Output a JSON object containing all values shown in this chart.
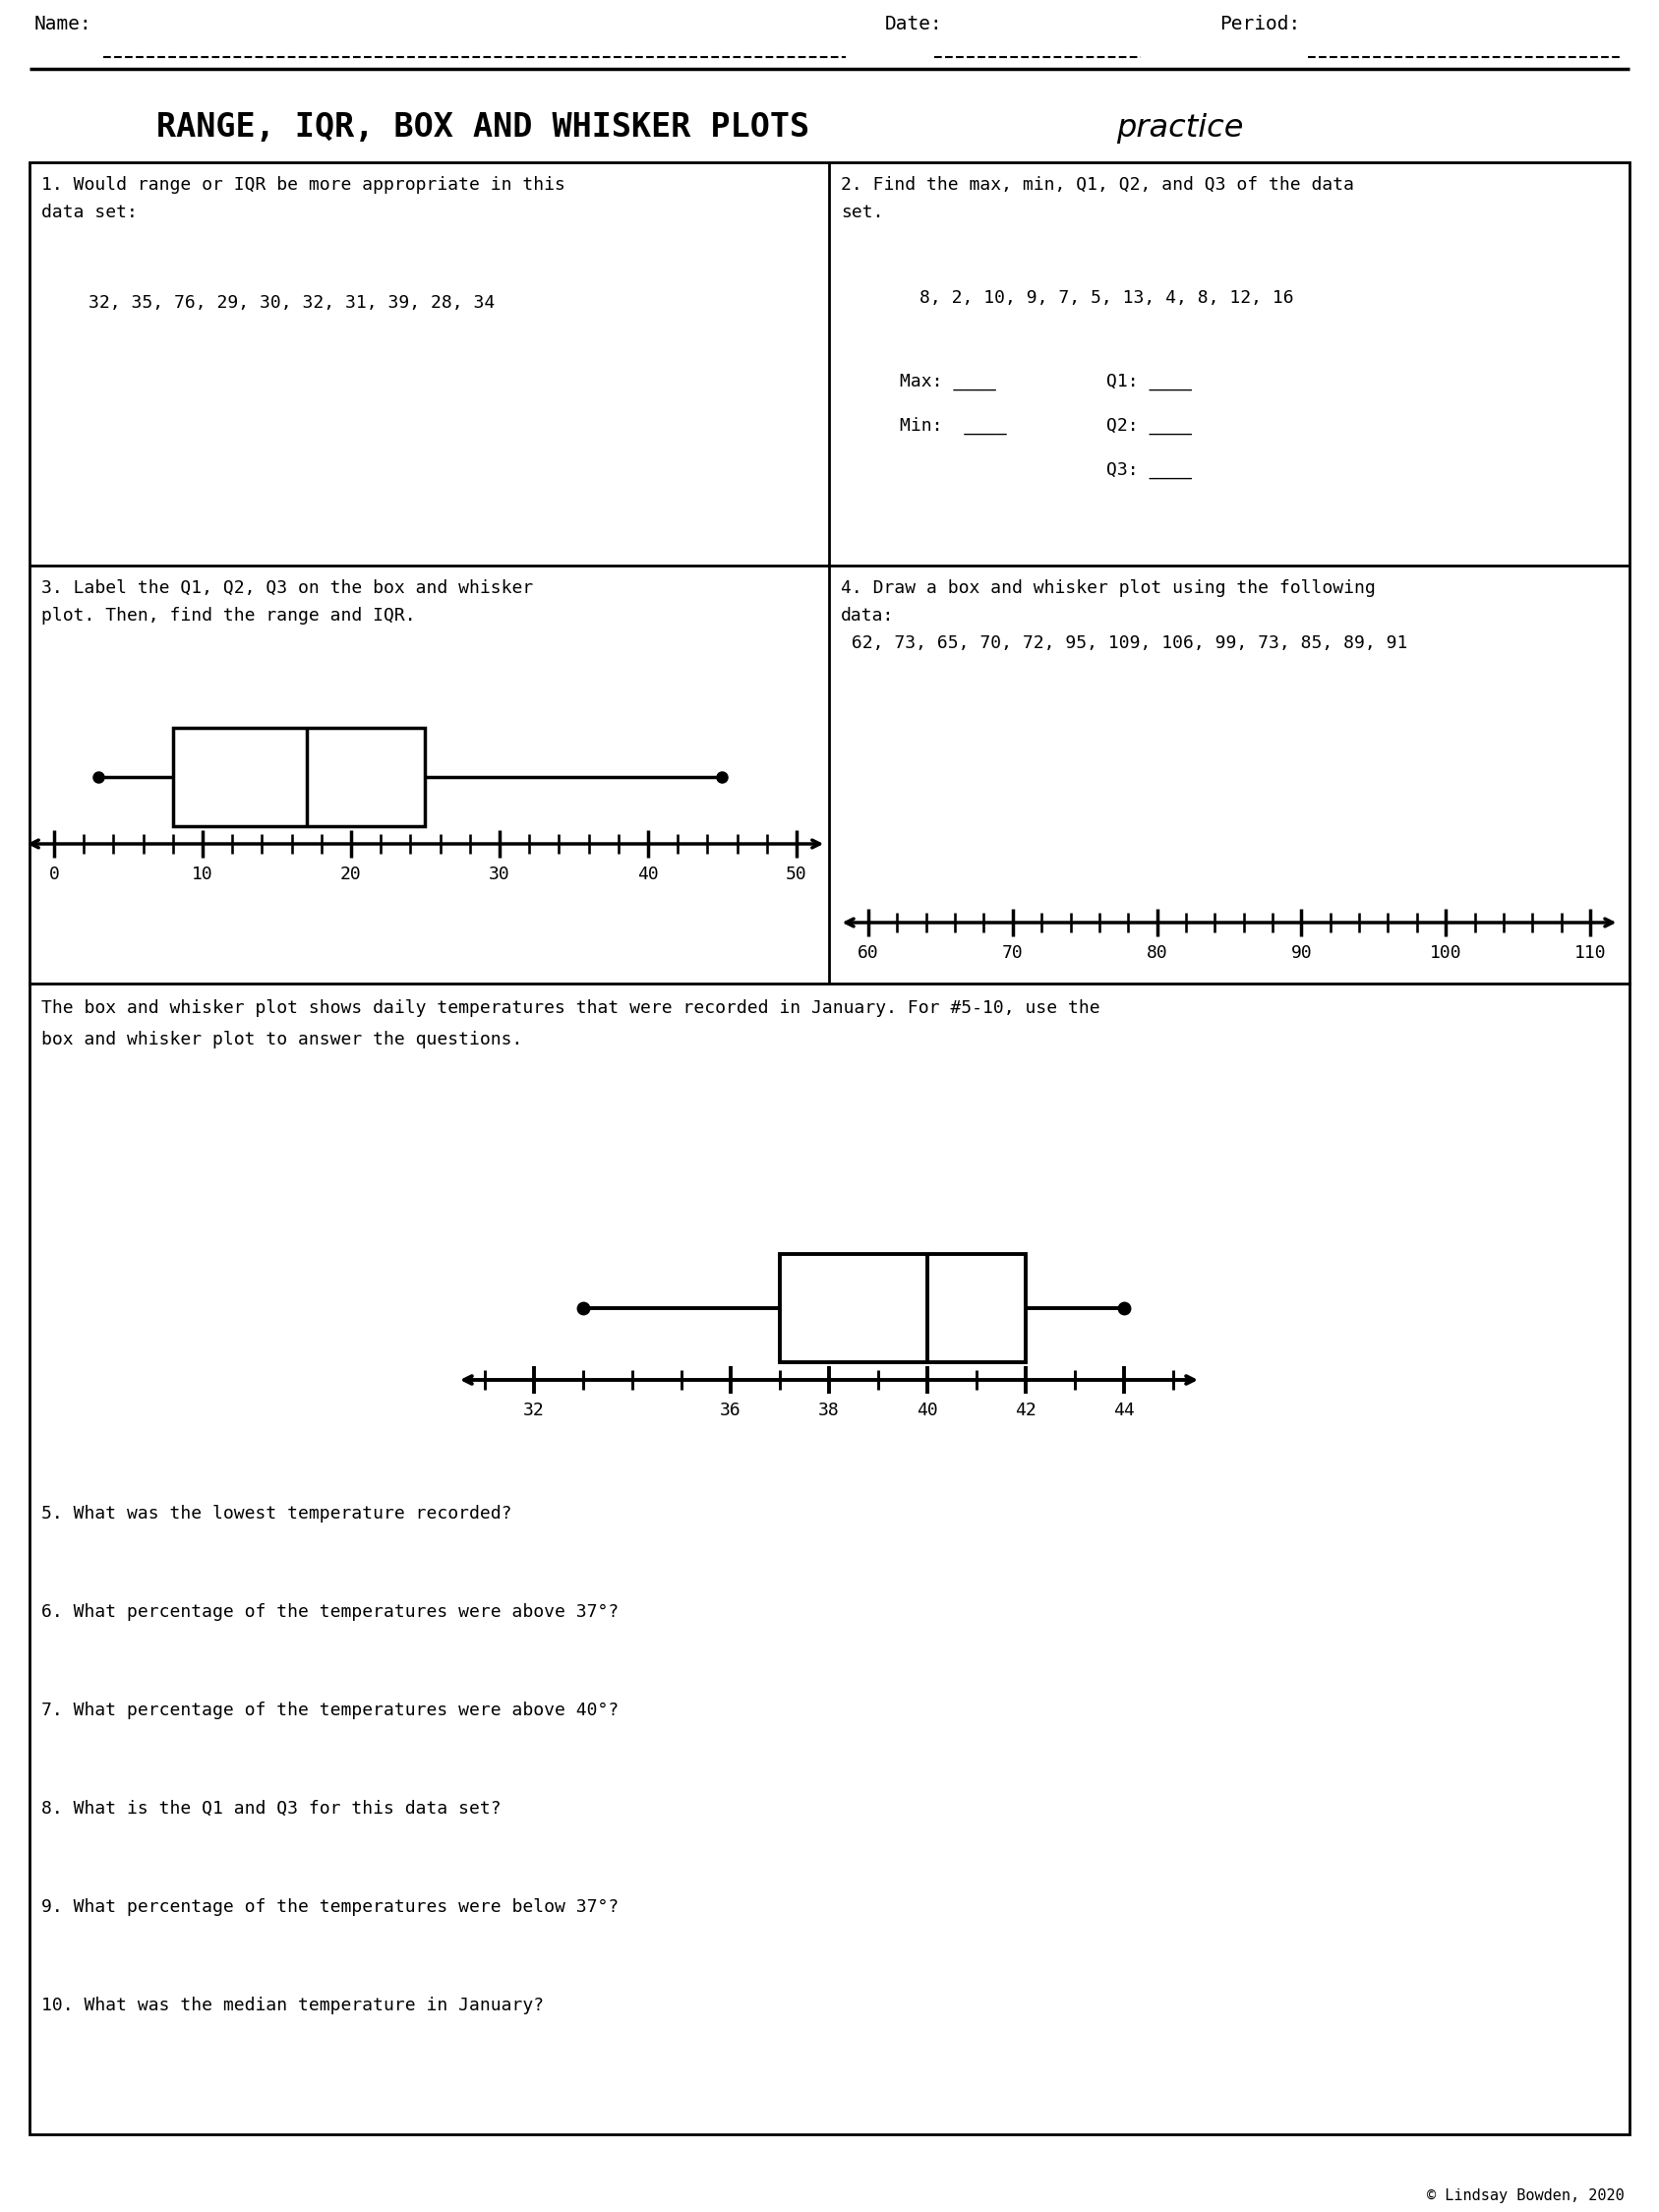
{
  "bg_color": "#ffffff",
  "title_block": "RANGE, IQR, BOX AND WHISKER PLOTS ",
  "title_cursive": "practice",
  "q1_line1": "1. Would range or IQR be more appropriate in this",
  "q1_line2": "data set:",
  "q1_data": "32, 35, 76, 29, 30, 32, 31, 39, 28, 34",
  "q2_line1": "2. Find the max, min, Q1, Q2, and Q3 of the data",
  "q2_line2": "set.",
  "q2_data": "8, 2, 10, 9, 7, 5, 13, 4, 8, 12, 16",
  "q3_line1": "3. Label the Q1, Q2, Q3 on the box and whisker",
  "q3_line2": "plot. Then, find the range and IQR.",
  "q4_line1": "4. Draw a box and whisker plot using the following",
  "q4_line2": "data:",
  "q4_data": " 62, 73, 65, 70, 72, 95, 109, 106, 99, 73, 85, 89, 91",
  "intro_line1": "The box and whisker plot shows daily temperatures that were recorded in January. For #5-10, use the",
  "intro_line2": "box and whisker plot to answer the questions.",
  "q5": "5. What was the lowest temperature recorded?",
  "q6": "6. What percentage of the temperatures were above 37°?",
  "q7": "7. What percentage of the temperatures were above 40°?",
  "q8": "8. What is the Q1 and Q3 for this data set?",
  "q9": "9. What percentage of the temperatures were below 37°?",
  "q10": "10. What was the median temperature in January?",
  "copyright": "© Lindsay Bowden, 2020",
  "bwp3_min": 3,
  "bwp3_q1": 8,
  "bwp3_med": 17,
  "bwp3_q3": 25,
  "bwp3_max": 45,
  "bwp3_axis_lo": 0,
  "bwp3_axis_hi": 50,
  "bwp3_major_ticks": [
    0,
    10,
    20,
    30,
    40,
    50
  ],
  "bwp3_minor_step": 2,
  "bwp4_axis_lo": 60,
  "bwp4_axis_hi": 110,
  "bwp4_major_ticks": [
    60,
    70,
    80,
    90,
    100,
    110
  ],
  "bwp4_minor_step": 2,
  "bwp5_min": 33,
  "bwp5_q1": 37,
  "bwp5_med": 40,
  "bwp5_q3": 42,
  "bwp5_max": 44,
  "bwp5_axis_lo": 31,
  "bwp5_axis_hi": 45,
  "bwp5_major_ticks": [
    32,
    36,
    38,
    40,
    42,
    44
  ],
  "bwp5_minor_step": 1
}
